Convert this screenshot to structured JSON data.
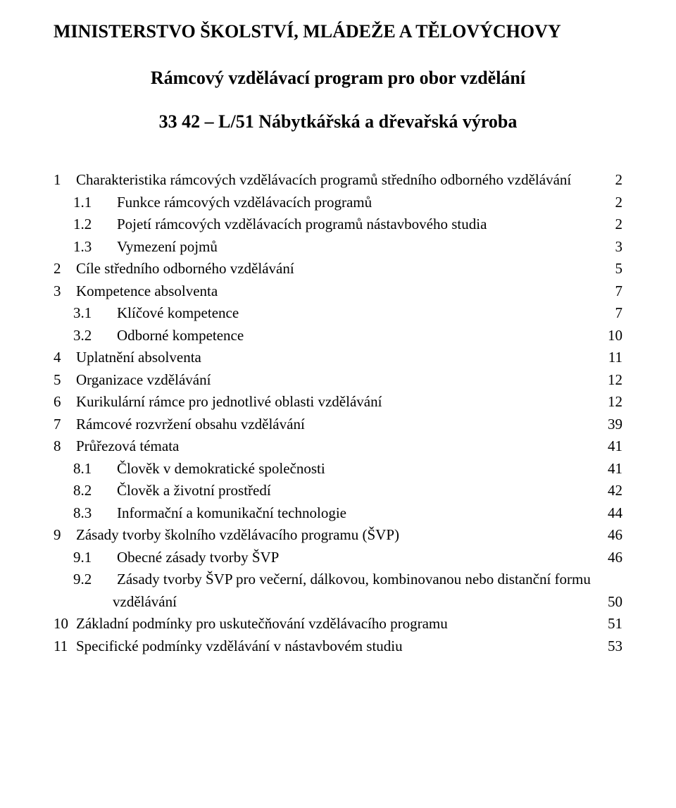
{
  "header": {
    "ministry": "MINISTERSTVO ŠKOLSTVÍ, MLÁDEŽE A TĚLOVÝCHOVY",
    "subtitle": "Rámcový vzdělávací program pro obor vzdělání",
    "program_code": "33 42 – L/51 Nábytkářská a dřevařská výroba"
  },
  "toc": [
    {
      "level": 1,
      "num": "1",
      "text": "Charakteristika rámcových vzdělávacích programů středního odborného vzdělávání",
      "page": "2"
    },
    {
      "level": 2,
      "num": "1.1",
      "text": "Funkce rámcových vzdělávacích programů",
      "page": "2"
    },
    {
      "level": 2,
      "num": "1.2",
      "text": "Pojetí rámcových vzdělávacích programů nástavbového studia",
      "page": "2"
    },
    {
      "level": 2,
      "num": "1.3",
      "text": "Vymezení pojmů",
      "page": "3"
    },
    {
      "level": 1,
      "num": "2",
      "text": "Cíle středního odborného vzdělávání",
      "page": "5"
    },
    {
      "level": 1,
      "num": "3",
      "text": "Kompetence absolventa",
      "page": "7"
    },
    {
      "level": 2,
      "num": "3.1",
      "text": "Klíčové kompetence",
      "page": "7"
    },
    {
      "level": 2,
      "num": "3.2",
      "text": "Odborné kompetence",
      "page": "10"
    },
    {
      "level": 1,
      "num": "4",
      "text": "Uplatnění absolventa",
      "page": "11"
    },
    {
      "level": 1,
      "num": "5",
      "text": "Organizace vzdělávání",
      "page": "12"
    },
    {
      "level": 1,
      "num": "6",
      "text": "Kurikulární rámce pro jednotlivé oblasti vzdělávání",
      "page": "12"
    },
    {
      "level": 1,
      "num": "7",
      "text": "Rámcové rozvržení obsahu vzdělávání",
      "page": "39"
    },
    {
      "level": 1,
      "num": "8",
      "text": "Průřezová témata",
      "page": "41"
    },
    {
      "level": 2,
      "num": "8.1",
      "text": "Člověk v demokratické společnosti",
      "page": "41"
    },
    {
      "level": 2,
      "num": "8.2",
      "text": "Člověk a životní prostředí",
      "page": "42"
    },
    {
      "level": 2,
      "num": "8.3",
      "text": "Informační a komunikační technologie",
      "page": "44"
    },
    {
      "level": 1,
      "num": "9",
      "text": "Zásady tvorby školního vzdělávacího programu (ŠVP)",
      "page": "46"
    },
    {
      "level": 2,
      "num": "9.1",
      "text": "Obecné zásady tvorby ŠVP",
      "page": "46"
    },
    {
      "level": 2,
      "num": "9.2",
      "text_line1": "Zásady tvorby ŠVP pro večerní, dálkovou, kombinovanou nebo distanční formu",
      "text_line2": "vzdělávání",
      "page": "50",
      "hanging": true
    },
    {
      "level": 1,
      "num": "10",
      "text": "Základní podmínky pro uskutečňování vzdělávacího programu",
      "page": "51"
    },
    {
      "level": 1,
      "num": "11",
      "text": "Specifické podmínky vzdělávání v nástavbovém studiu",
      "page": "53"
    }
  ]
}
